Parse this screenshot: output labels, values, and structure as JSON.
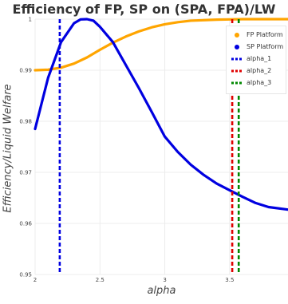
{
  "chart_data": {
    "type": "line",
    "title": "Efficiency of FP, SP on (SPA, FPA)/LW",
    "xlabel": "alpha",
    "ylabel": "Efficiency/Liquid Welfare",
    "xlim": [
      2.0,
      3.95
    ],
    "ylim": [
      0.95,
      1.0
    ],
    "x_ticks": [
      "2",
      "2.5",
      "3",
      "3.5"
    ],
    "x_tick_values": [
      2.0,
      2.5,
      3.0,
      3.5
    ],
    "y_ticks": [
      "0.95",
      "0.96",
      "0.97",
      "0.98",
      "0.99",
      "1"
    ],
    "y_tick_values": [
      0.95,
      0.96,
      0.97,
      0.98,
      0.99,
      1.0
    ],
    "grid": true,
    "legend_position": "top-right",
    "series": [
      {
        "name": "FP Platform",
        "color": "#FFA500",
        "style": "line",
        "legend_marker": "circle",
        "x": [
          2.0,
          2.1,
          2.2,
          2.3,
          2.4,
          2.5,
          2.6,
          2.7,
          2.8,
          2.9,
          3.0,
          3.1,
          3.2,
          3.3,
          3.4,
          3.5,
          3.6,
          3.7,
          3.8,
          3.95
        ],
        "y": [
          0.99,
          0.9901,
          0.9905,
          0.9913,
          0.9925,
          0.994,
          0.9954,
          0.9966,
          0.9976,
          0.9984,
          0.999,
          0.9994,
          0.9997,
          0.9998,
          0.9999,
          0.99995,
          1.0,
          1.0,
          1.0,
          1.0
        ]
      },
      {
        "name": "SP Platform",
        "color": "#0000E0",
        "style": "line",
        "legend_marker": "circle",
        "x": [
          2.0,
          2.1,
          2.2,
          2.3,
          2.35,
          2.4,
          2.45,
          2.5,
          2.6,
          2.7,
          2.8,
          2.9,
          3.0,
          3.1,
          3.2,
          3.3,
          3.4,
          3.5,
          3.6,
          3.7,
          3.8,
          3.95
        ],
        "y": [
          0.9785,
          0.9885,
          0.9955,
          0.9992,
          0.99995,
          1.0,
          0.9997,
          0.9985,
          0.9955,
          0.991,
          0.9865,
          0.9818,
          0.977,
          0.974,
          0.9715,
          0.9695,
          0.9678,
          0.9665,
          0.9652,
          0.964,
          0.9632,
          0.9627
        ]
      },
      {
        "name": "alpha_1",
        "color": "#0000E0",
        "style": "dashed-vertical",
        "legend_marker": "dash",
        "x_value": 2.19
      },
      {
        "name": "alpha_2",
        "color": "#E00000",
        "style": "dashed-vertical",
        "legend_marker": "dash",
        "x_value": 3.52
      },
      {
        "name": "alpha_3",
        "color": "#008800",
        "style": "dashed-vertical",
        "legend_marker": "dash",
        "x_value": 3.57
      }
    ]
  }
}
